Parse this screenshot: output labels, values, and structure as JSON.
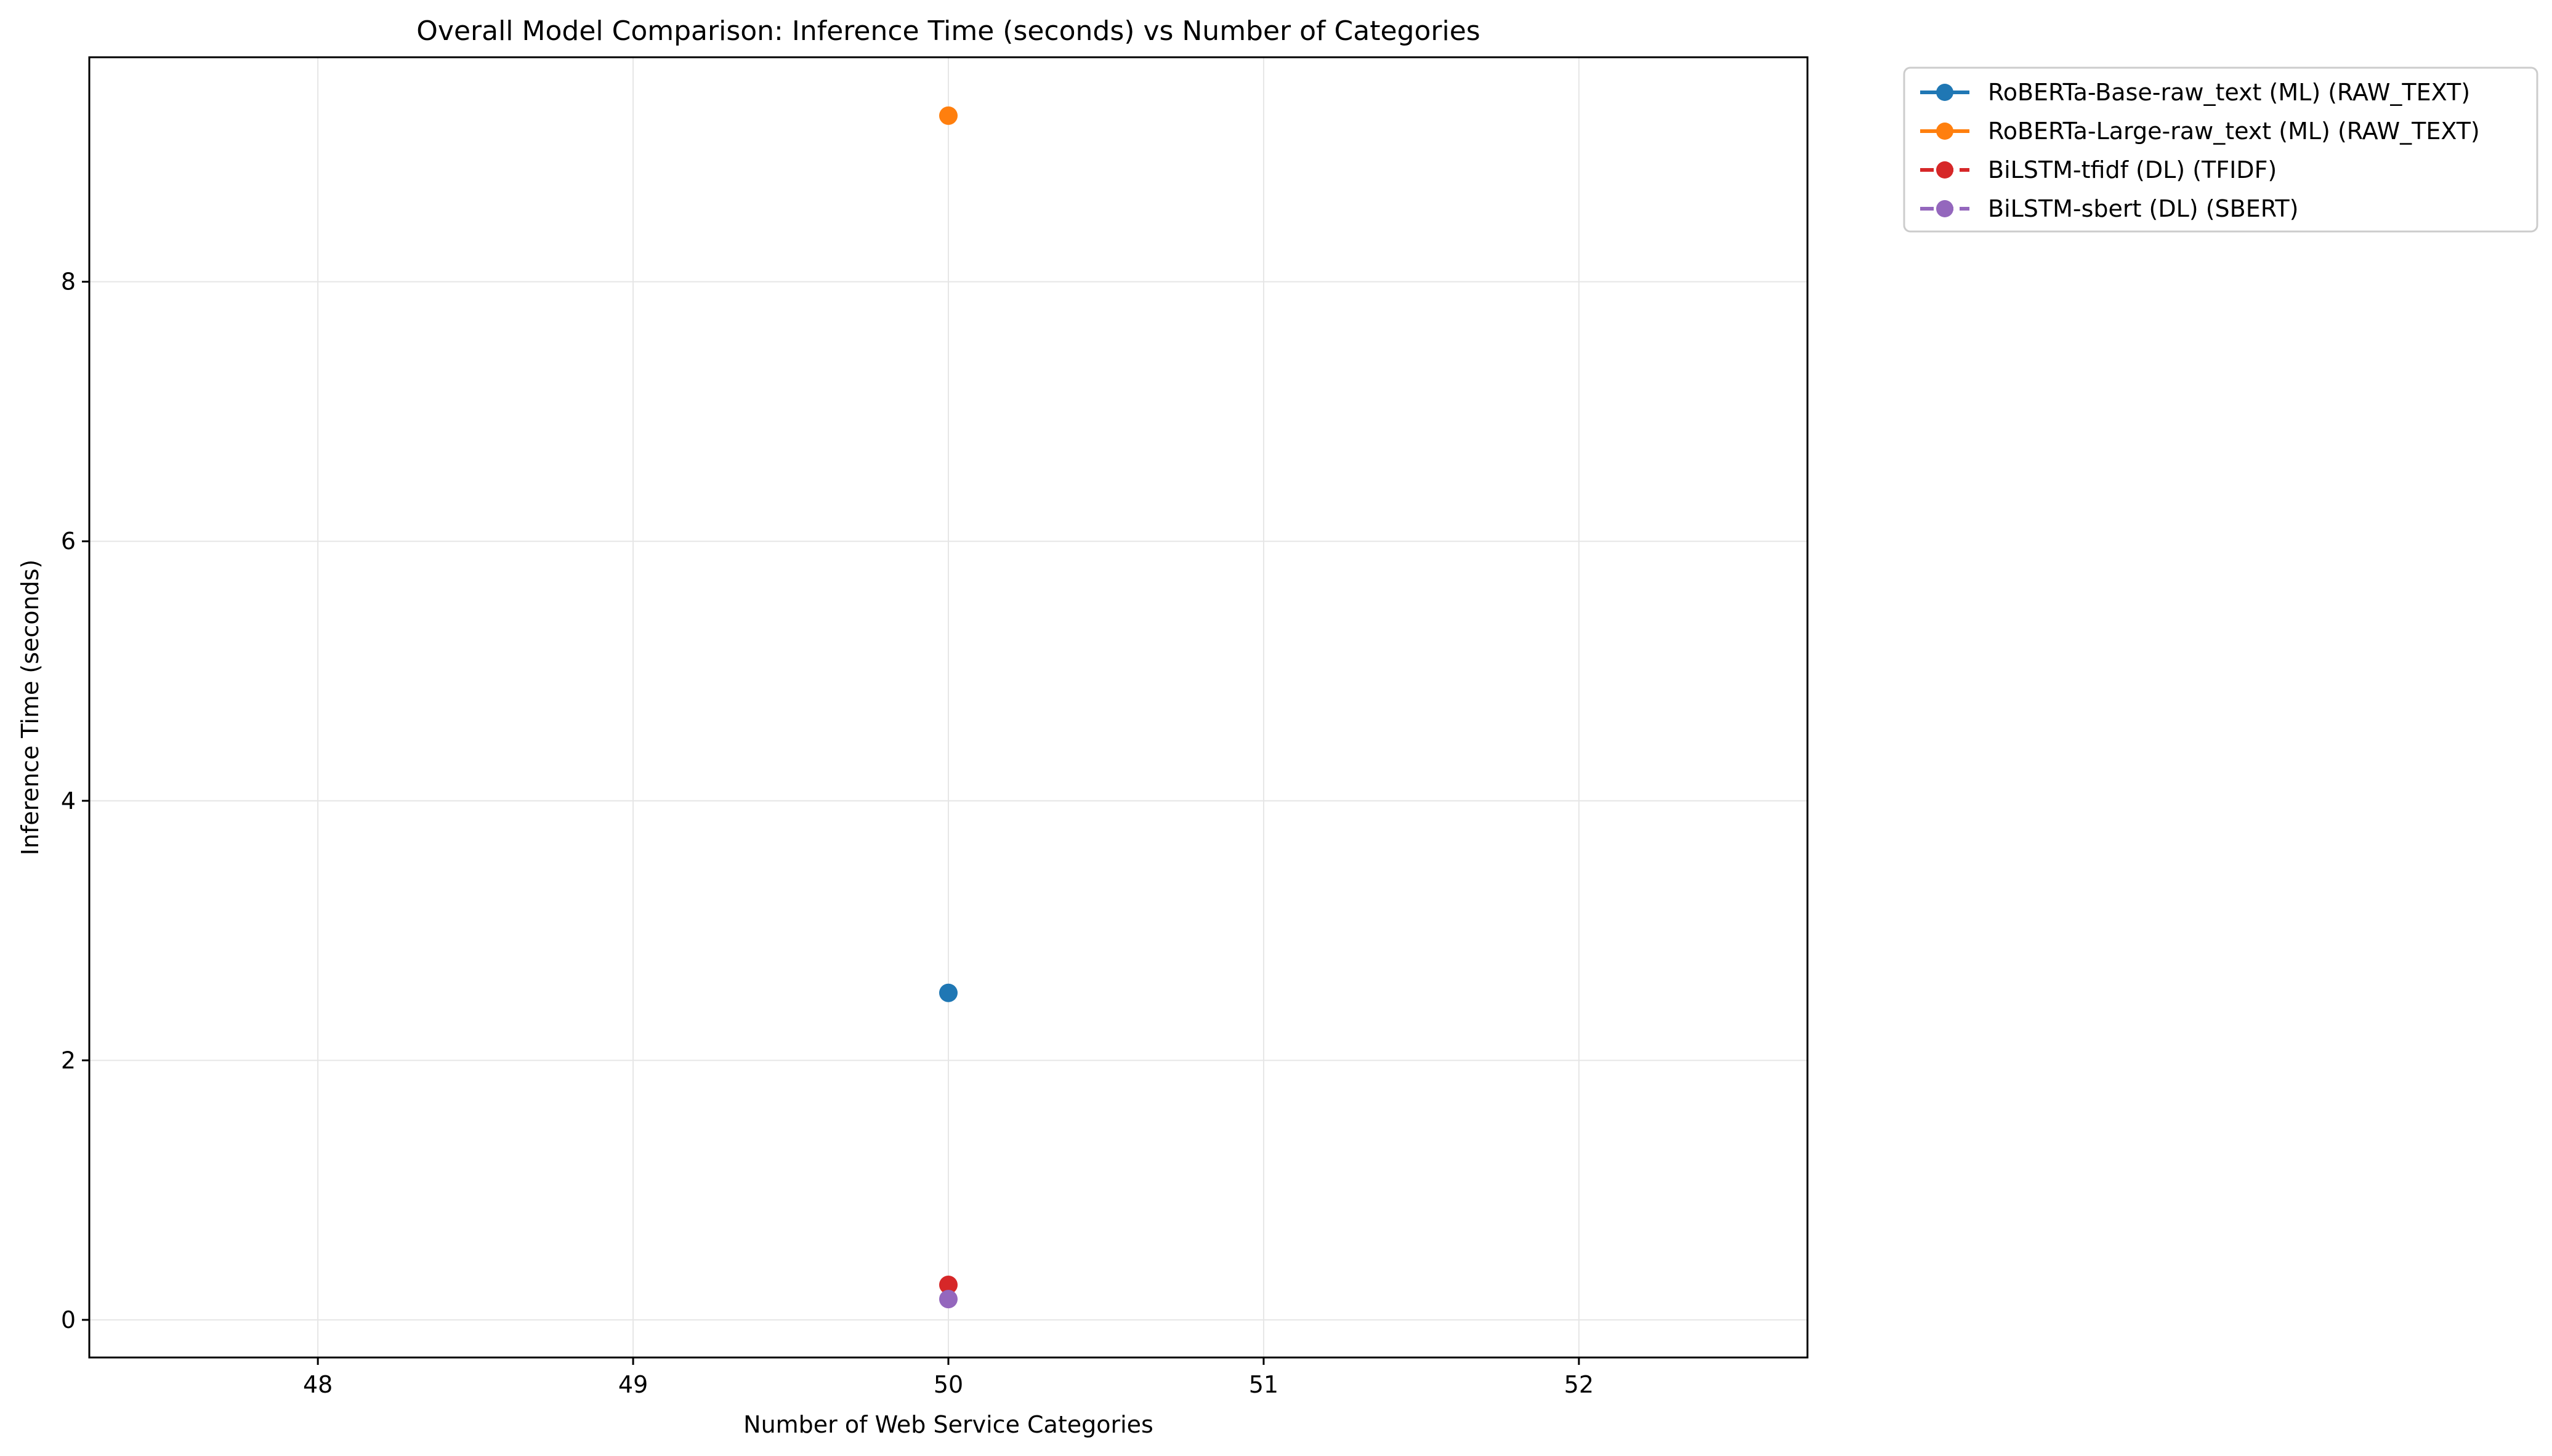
{
  "chart_data": {
    "type": "line",
    "title": "Overall Model Comparison: Inference Time (seconds) vs Number of Categories",
    "xlabel": "Number of Web Service Categories",
    "ylabel": "Inference Time (seconds)",
    "xlim": [
      47.275,
      52.725
    ],
    "ylim": [
      -0.29,
      9.73
    ],
    "xticks": [
      48,
      49,
      50,
      51,
      52
    ],
    "yticks": [
      0,
      2,
      4,
      6,
      8
    ],
    "grid": true,
    "legend_position": "outside upper right",
    "series": [
      {
        "name": "RoBERTa-Base-raw_text (ML) (RAW_TEXT)",
        "color": "#1f77b4",
        "linestyle": "solid",
        "x": [
          50
        ],
        "y": [
          2.52
        ]
      },
      {
        "name": "RoBERTa-Large-raw_text (ML) (RAW_TEXT)",
        "color": "#ff7f0e",
        "linestyle": "solid",
        "x": [
          50
        ],
        "y": [
          9.28
        ]
      },
      {
        "name": "BiLSTM-tfidf (DL) (TFIDF)",
        "color": "#d62728",
        "linestyle": "dashed",
        "x": [
          50
        ],
        "y": [
          0.27
        ]
      },
      {
        "name": "BiLSTM-sbert (DL) (SBERT)",
        "color": "#9467bd",
        "linestyle": "dashed",
        "x": [
          50
        ],
        "y": [
          0.16
        ]
      }
    ]
  }
}
